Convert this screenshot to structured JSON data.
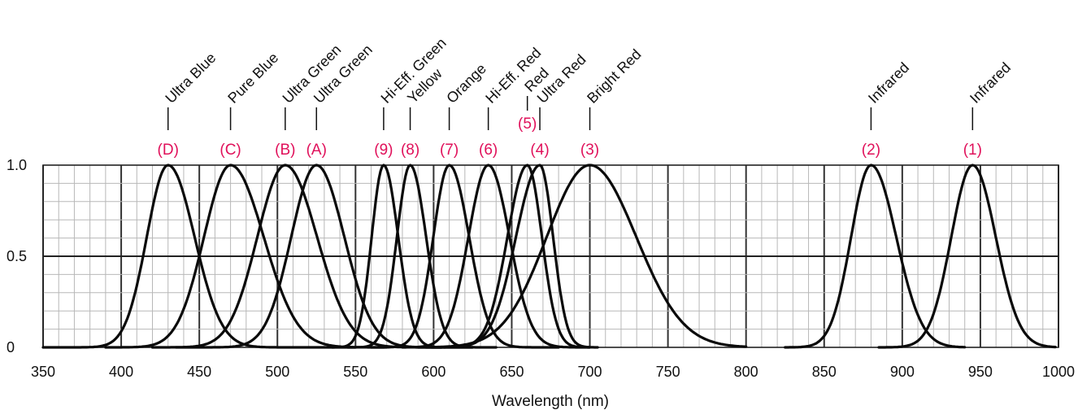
{
  "chart_data": {
    "type": "line",
    "title": "",
    "xlabel": "Wavelength (nm)",
    "ylabel": "",
    "xlim": [
      350,
      1000
    ],
    "ylim": [
      0,
      1.0
    ],
    "x_ticks": [
      "350",
      "400",
      "450",
      "500",
      "550",
      "600",
      "650",
      "700",
      "750",
      "800",
      "850",
      "900",
      "950",
      "1000"
    ],
    "y_ticks": [
      "0",
      "0.5",
      "1.0"
    ],
    "grid": true,
    "series": [
      {
        "id": "(D)",
        "name": "Ultra Blue",
        "peak": 430,
        "fwhm_left": 32,
        "fwhm_right": 40,
        "start": 350,
        "end": 550
      },
      {
        "id": "(C)",
        "name": "Pure Blue",
        "peak": 470,
        "fwhm_left": 40,
        "fwhm_right": 50,
        "start": 390,
        "end": 570
      },
      {
        "id": "(B)",
        "name": "Ultra Green",
        "peak": 505,
        "fwhm_left": 42,
        "fwhm_right": 48,
        "start": 420,
        "end": 605
      },
      {
        "id": "(A)",
        "name": "Ultra Green",
        "peak": 525,
        "fwhm_left": 38,
        "fwhm_right": 42,
        "start": 435,
        "end": 625
      },
      {
        "id": "(9)",
        "name": "Hi-Eff. Green",
        "peak": 568,
        "fwhm_left": 18,
        "fwhm_right": 22,
        "start": 535,
        "end": 625
      },
      {
        "id": "(8)",
        "name": "Yellow",
        "peak": 585,
        "fwhm_left": 20,
        "fwhm_right": 24,
        "start": 545,
        "end": 640
      },
      {
        "id": "(7)",
        "name": "Orange",
        "peak": 610,
        "fwhm_left": 24,
        "fwhm_right": 30,
        "start": 560,
        "end": 680
      },
      {
        "id": "(6)",
        "name": "Hi-Eff. Red",
        "peak": 635,
        "fwhm_left": 30,
        "fwhm_right": 32,
        "start": 580,
        "end": 700
      },
      {
        "id": "(5)",
        "name": "Red",
        "peak": 660,
        "fwhm_left": 30,
        "fwhm_right": 22,
        "start": 590,
        "end": 700
      },
      {
        "id": "(4)",
        "name": "Ultra Red",
        "peak": 668,
        "fwhm_left": 36,
        "fwhm_right": 20,
        "start": 595,
        "end": 705
      },
      {
        "id": "(3)",
        "name": "Bright Red",
        "peak": 700,
        "fwhm_left": 65,
        "fwhm_right": 70,
        "start": 600,
        "end": 800
      },
      {
        "id": "(2)",
        "name": "Infrared",
        "peak": 880,
        "fwhm_left": 30,
        "fwhm_right": 38,
        "start": 825,
        "end": 940
      },
      {
        "id": "(1)",
        "name": "Infrared",
        "peak": 945,
        "fwhm_left": 32,
        "fwhm_right": 35,
        "start": 885,
        "end": 998
      }
    ]
  }
}
